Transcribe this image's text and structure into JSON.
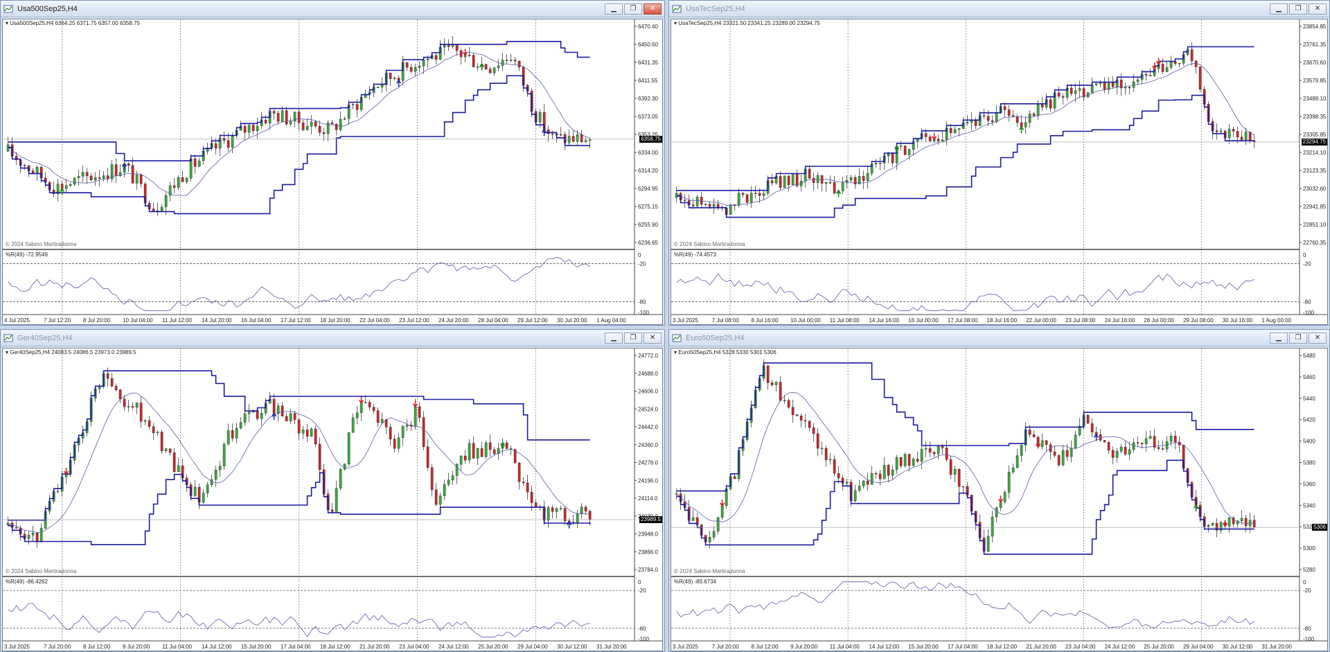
{
  "charts": [
    {
      "id": "c1",
      "title": "Usa500Sep25,H4",
      "active": true,
      "header": "Usa500Sep25,H4  6364.25 6371.75 6357.00 6358.75",
      "copyright": "© 2024 Sabino Martiradonna",
      "wr_label": "%R(49) -72.9549",
      "current_price": "6358.75",
      "price_labels": [
        "6470.40",
        "6450.60",
        "6431.35",
        "6411.55",
        "6392.30",
        "6373.05",
        "6353.25",
        "6334.00",
        "6314.20",
        "6294.95",
        "6275.15",
        "6255.90",
        "6236.65"
      ],
      "wr_labels": [
        "0",
        "-20",
        "-80",
        "-100"
      ],
      "time_labels": [
        "4 Jul 2025",
        "7 Jul 12:20",
        "8 Jul 20:00",
        "10 Jul 04:00",
        "11 Jul 12:00",
        "14 Jul 20:00",
        "16 Jul 04:00",
        "17 Jul 12:00",
        "18 Jul 20:00",
        "22 Jul 04:00",
        "23 Jul 12:00",
        "24 Jul 20:00",
        "28 Jul 04:00",
        "29 Jul 12:00",
        "30 Jul 20:00",
        "1 Aug 04:00"
      ]
    },
    {
      "id": "c2",
      "title": "UsaTecSep25,H4",
      "active": false,
      "header": "UsaTecSep25,H4  23321.50 23341.25 23289.00 23294.75",
      "copyright": "© 2024 Sabino Martiradonna",
      "wr_label": "%R(49) -74.4573",
      "current_price": "23294.75",
      "price_labels": [
        "23854.85",
        "23761.35",
        "23670.60",
        "23579.85",
        "23489.10",
        "23398.35",
        "23305.85",
        "23214.10",
        "23123.35",
        "23032.60",
        "22941.85",
        "22851.10",
        "22760.35"
      ],
      "wr_labels": [
        "0",
        "-20",
        "-80",
        "-100"
      ],
      "time_labels": [
        "3 Jul 2025",
        "7 Jul 08:00",
        "8 Jul 16:00",
        "10 Jul 00:00",
        "11 Jul 08:00",
        "14 Jul 16:00",
        "16 Jul 00:00",
        "17 Jul 08:00",
        "18 Jul 16:00",
        "22 Jul 00:00",
        "23 Jul 08:00",
        "24 Jul 16:00",
        "28 Jul 00:00",
        "29 Jul 08:00",
        "30 Jul 16:00",
        "1 Aug 00:00"
      ]
    },
    {
      "id": "c3",
      "title": "Ger40Sep25,H4",
      "active": false,
      "header": "Ger40Sep25,H4  24083.5 24086.5 23973.0 23989.5",
      "copyright": "© 2024 Sabino Martiradonna",
      "wr_label": "%R(49) -86.4262",
      "current_price": "23989.5",
      "price_labels": [
        "24772.0",
        "24688.0",
        "24606.0",
        "24524.0",
        "24442.0",
        "24360.0",
        "24278.0",
        "24196.0",
        "24114.0",
        "24030.0",
        "23948.0",
        "23866.0",
        "23784.0"
      ],
      "wr_labels": [
        "0",
        "-20",
        "-80",
        "-100"
      ],
      "time_labels": [
        "3 Jul 2025",
        "7 Jul 20:00",
        "8 Jul 12:00",
        "9 Jul 20:00",
        "11 Jul 04:00",
        "14 Jul 12:00",
        "15 Jul 20:00",
        "17 Jul 04:00",
        "18 Jul 12:00",
        "21 Jul 20:00",
        "23 Jul 04:00",
        "24 Jul 12:00",
        "25 Jul 20:00",
        "29 Jul 04:00",
        "30 Jul 12:00",
        "31 Jul 20:00"
      ]
    },
    {
      "id": "c4",
      "title": "Euro50Sep25,H4",
      "active": false,
      "header": "Euro50Sep25,H4  5328 5330 5301 5306",
      "copyright": "© 2024 Sabino Martiradonna",
      "wr_label": "%R(49) -89.6734",
      "current_price": "5306",
      "price_labels": [
        "5480",
        "5460",
        "5440",
        "5420",
        "5400",
        "5380",
        "5360",
        "5340",
        "5320",
        "5300",
        "5280"
      ],
      "wr_labels": [
        "0",
        "-20",
        "-80",
        "-100"
      ],
      "time_labels": [
        "3 Jul 2025",
        "7 Jul 20:00",
        "8 Jul 12:00",
        "9 Jul 20:00",
        "11 Jul 04:00",
        "14 Jul 12:00",
        "15 Jul 20:00",
        "17 Jul 04:00",
        "18 Jul 12:00",
        "21 Jul 20:00",
        "23 Jul 04:00",
        "24 Jul 12:00",
        "25 Jul 20:00",
        "29 Jul 04:00",
        "30 Jul 12:00",
        "31 Jul 20:00"
      ]
    }
  ],
  "colors": {
    "bull": "#3aa83a",
    "bear": "#c82828",
    "channel": "#1a1aa0",
    "ma": "#5a5aa8",
    "grid": "#555555",
    "up_arrow": "#1a8a1a",
    "down_arrow": "#d82020",
    "blue_arrow": "#1a2aa0"
  }
}
